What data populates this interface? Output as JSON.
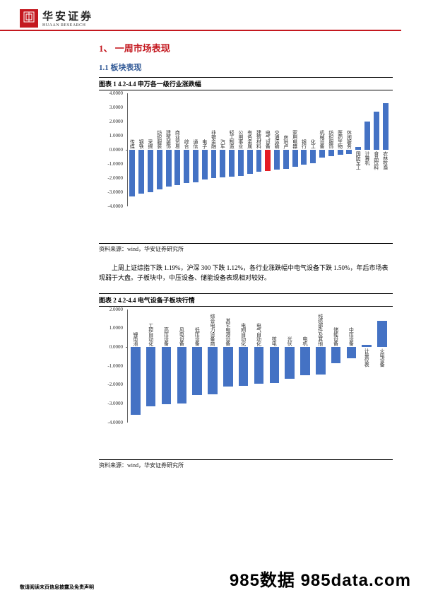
{
  "brand": {
    "cn": "华安证券",
    "en": "HUAAN RESEARCH"
  },
  "section": {
    "h1": "1、 一周市场表现",
    "h2": "1.1  板块表现"
  },
  "chart1": {
    "title": "图表 1 4.2-4.4 申万各一级行业涨跌幅",
    "source": "资料来源：wind，华安证券研究所",
    "type": "bar",
    "ylim": [
      -4,
      4
    ],
    "ytick_step": 1,
    "tick_format": ".4f",
    "bar_color": "#4472c4",
    "highlight_color": "#e51c23",
    "highlight_index": 15,
    "axis_color": "#666666",
    "label_fontsize": 7,
    "categories": [
      "传媒",
      "钢铁",
      "采掘",
      "纺织服装",
      "建筑装饰",
      "商业贸易",
      "综合",
      "通信",
      "电子",
      "非银金融",
      "汽车",
      "轻工制造",
      "公用事业",
      "有色金属",
      "建筑材料",
      "电气设备",
      "交通运输",
      "房地产",
      "家用电器",
      "银行",
      "化工",
      "机械设备",
      "纺织服饰",
      "医药生物",
      "休闲服务",
      "国防军工",
      "计算机",
      "食品饮料",
      "农林牧渔"
    ],
    "values": [
      -3.3,
      -3.1,
      -3.0,
      -2.8,
      -2.6,
      -2.5,
      -2.35,
      -2.3,
      -2.1,
      -2.0,
      -1.95,
      -1.9,
      -1.85,
      -1.7,
      -1.55,
      -1.5,
      -1.4,
      -1.35,
      -1.2,
      -1.05,
      -0.95,
      -0.55,
      -0.45,
      -0.35,
      -0.3,
      0.2,
      2.0,
      2.7,
      3.3
    ]
  },
  "paragraph": "上周上证综指下跌 1.19%，沪深 300 下跌 1.12%，各行业涨跌幅中电气设备下跌 1.50%，年后市场表现弱于大盘。子板块中，中压设备、储能设备表现相对较好。",
  "chart2": {
    "title": "图表 2 4.2-4.4 电气设备子板块行情",
    "source": "资料来源：wind，华安证券研究所",
    "type": "bar",
    "ylim": [
      -4,
      2
    ],
    "ytick_step": 1,
    "tick_format": ".4f",
    "bar_color": "#4472c4",
    "axis_color": "#666666",
    "label_fontsize": 7,
    "categories": [
      "锂电池",
      "工控自动化",
      "高压设备",
      "风电设备",
      "低压设备",
      "综合电力设备商",
      "其它电源设备",
      "电网自动化",
      "电气自动化",
      "核电",
      "光伏",
      "电机",
      "线缆部件及其他",
      "储能设备",
      "中压设备",
      "计量仪表",
      "火电设备"
    ],
    "values": [
      -3.6,
      -3.15,
      -3.05,
      -3.0,
      -2.55,
      -2.5,
      -2.1,
      -2.05,
      -1.95,
      -1.9,
      -1.7,
      -1.5,
      -1.45,
      -0.85,
      -0.6,
      0.1,
      1.4
    ]
  },
  "footer": {
    "disclaimer": "敬请阅读末页信息披露及免责声明",
    "watermark": "985数据 985data.com"
  }
}
